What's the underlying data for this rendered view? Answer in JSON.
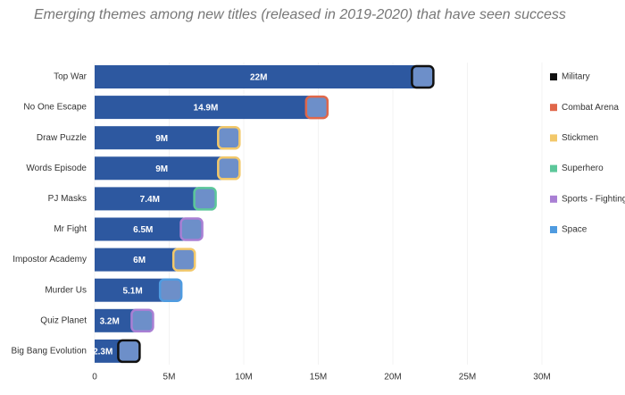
{
  "chart_data": {
    "type": "bar",
    "orientation": "horizontal",
    "title": "Emerging themes among new titles (released in 2019-2020) that have seen success",
    "categories": [
      "Top War",
      "No One Escape",
      "Draw Puzzle",
      "Words Episode",
      "PJ Masks",
      "Mr Fight",
      "Impostor Academy",
      "Murder Us",
      "Quiz Planet",
      "Big Bang Evolution"
    ],
    "values": [
      22000000,
      14900000,
      9000000,
      9000000,
      7400000,
      6500000,
      6000000,
      5100000,
      3200000,
      2300000
    ],
    "value_labels": [
      "22M",
      "14.9M",
      "9M",
      "9M",
      "7.4M",
      "6.5M",
      "6M",
      "5.1M",
      "3.2M",
      "2.3M"
    ],
    "color": "#2d58a0",
    "icon_colors": [
      "#111111",
      "#e0674a",
      "#f2c86a",
      "#f2c86a",
      "#5cc79a",
      "#a97fd4",
      "#f2c86a",
      "#4f9be0",
      "#a97fd4",
      "#111111"
    ],
    "xlim": [
      0,
      30000000
    ],
    "xticks": [
      0,
      {
        "value": 5000000,
        "label": "5M"
      },
      {
        "value": 10000000,
        "label": "10M"
      },
      {
        "value": 15000000,
        "label": "15M"
      },
      {
        "value": 20000000,
        "label": "20M"
      },
      {
        "value": 25000000,
        "label": "25M"
      },
      {
        "value": 30000000,
        "label": "30M"
      }
    ],
    "legend": [
      {
        "name": "Military",
        "color": "#111111"
      },
      {
        "name": "Combat Arena",
        "color": "#e0674a"
      },
      {
        "name": "Stickmen",
        "color": "#f2c86a"
      },
      {
        "name": "Superhero",
        "color": "#5cc79a"
      },
      {
        "name": "Sports - Fighting",
        "color": "#a97fd4"
      },
      {
        "name": "Space",
        "color": "#4f9be0"
      }
    ],
    "legend_position": "right",
    "grid": true
  }
}
